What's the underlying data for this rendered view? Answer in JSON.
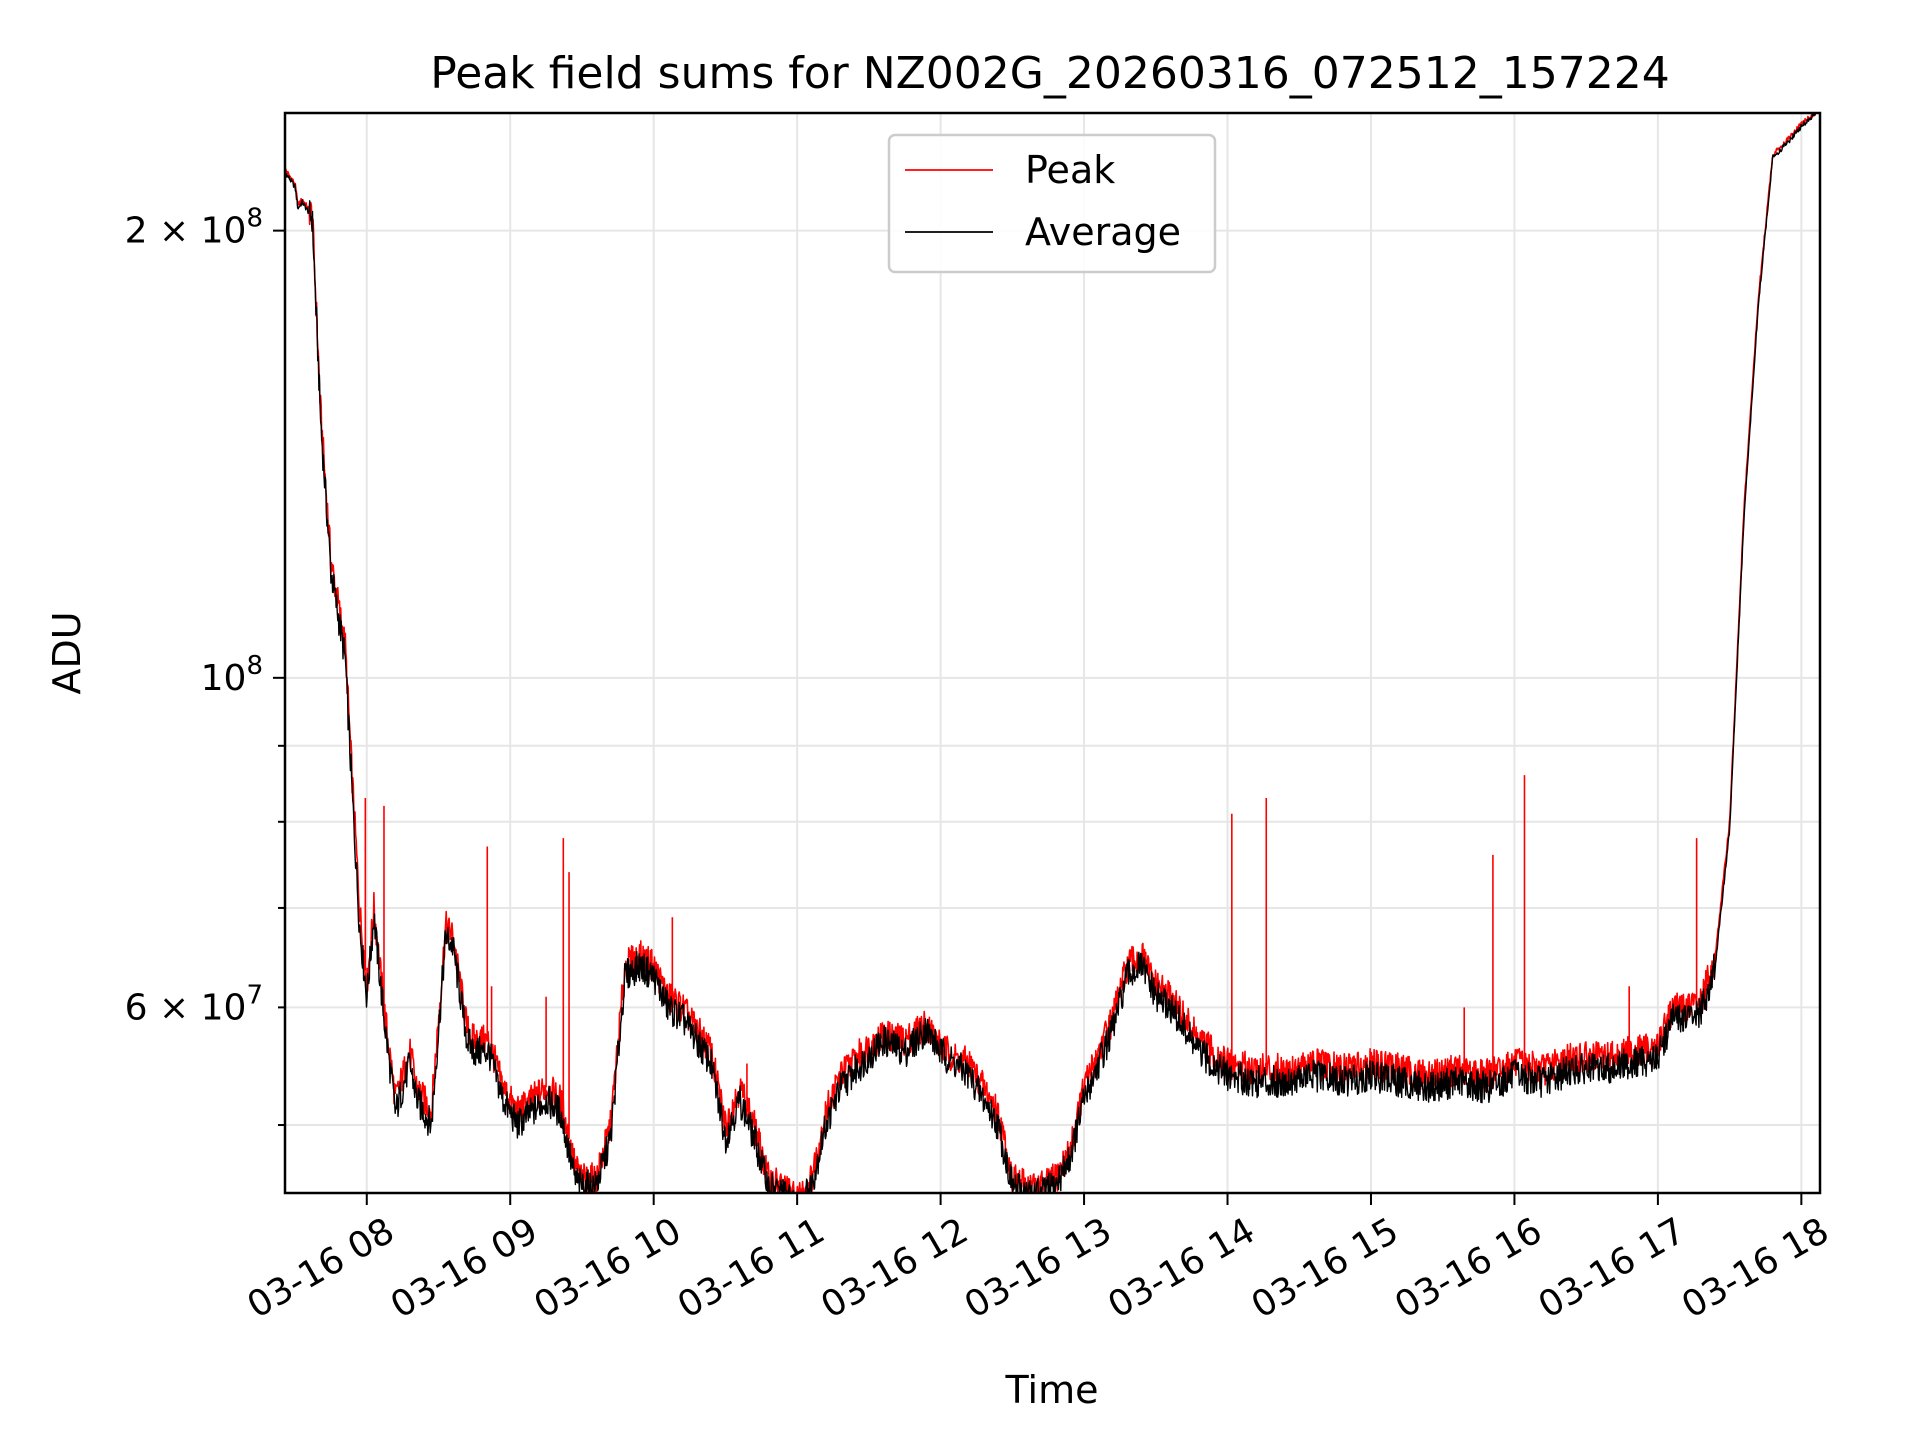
{
  "chart_data": {
    "type": "line",
    "title": "Peak field sums for NZ002G_20260316_072512_157224",
    "xlabel": "Time",
    "ylabel": "ADU",
    "yscale": "log",
    "grid": true,
    "legend_position": "upper-center",
    "xlim": [
      7.43,
      18.13
    ],
    "ylim": [
      45000000,
      240000000
    ],
    "x_ticks": [
      {
        "value": 8,
        "label": "03-16 08"
      },
      {
        "value": 9,
        "label": "03-16 09"
      },
      {
        "value": 10,
        "label": "03-16 10"
      },
      {
        "value": 11,
        "label": "03-16 11"
      },
      {
        "value": 12,
        "label": "03-16 12"
      },
      {
        "value": 13,
        "label": "03-16 13"
      },
      {
        "value": 14,
        "label": "03-16 14"
      },
      {
        "value": 15,
        "label": "03-16 15"
      },
      {
        "value": 16,
        "label": "03-16 16"
      },
      {
        "value": 17,
        "label": "03-16 17"
      },
      {
        "value": 18,
        "label": "03-16 18"
      }
    ],
    "y_major_ticks": [
      {
        "value": 100000000,
        "base": "10",
        "exp": "8",
        "mantissa": ""
      },
      {
        "value": 200000000,
        "base": "10",
        "exp": "8",
        "mantissa": "2"
      }
    ],
    "y_minor_ticks": [
      {
        "value": 50000000,
        "label": ""
      },
      {
        "value": 60000000,
        "base": "10",
        "exp": "7",
        "mantissa": "6"
      },
      {
        "value": 70000000,
        "label": ""
      },
      {
        "value": 80000000,
        "label": ""
      },
      {
        "value": 90000000,
        "label": ""
      }
    ],
    "series": [
      {
        "name": "Peak",
        "color": "#ff0000",
        "x": [
          7.43,
          7.5,
          7.52,
          7.55,
          7.62,
          7.68,
          7.75,
          7.85,
          7.9,
          7.95,
          8.0,
          8.05,
          8.12,
          8.2,
          8.3,
          8.35,
          8.45,
          8.55,
          8.6,
          8.7,
          8.75,
          8.85,
          8.95,
          9.05,
          9.15,
          9.25,
          9.35,
          9.45,
          9.5,
          9.6,
          9.7,
          9.8,
          9.9,
          10.0,
          10.1,
          10.2,
          10.3,
          10.4,
          10.5,
          10.6,
          10.7,
          10.8,
          10.9,
          11.0,
          11.1,
          11.2,
          11.3,
          11.45,
          11.6,
          11.75,
          11.9,
          12.0,
          12.1,
          12.2,
          12.3,
          12.4,
          12.5,
          12.6,
          12.7,
          12.8,
          12.9,
          13.0,
          13.1,
          13.2,
          13.3,
          13.4,
          13.5,
          13.6,
          13.7,
          13.8,
          13.9,
          14.0,
          14.2,
          14.4,
          14.6,
          14.8,
          15.0,
          15.2,
          15.4,
          15.6,
          15.8,
          16.0,
          16.2,
          16.4,
          16.6,
          16.8,
          17.0,
          17.1,
          17.2,
          17.3,
          17.4,
          17.5,
          17.6,
          17.7,
          17.8,
          17.9,
          18.0,
          18.1
        ],
        "y": [
          220000000,
          215000000,
          208000000,
          210000000,
          205000000,
          150000000,
          120000000,
          105000000,
          85000000,
          70000000,
          62000000,
          70000000,
          60000000,
          52000000,
          56000000,
          53000000,
          51000000,
          68000000,
          67000000,
          58000000,
          57000000,
          57000000,
          53000000,
          51000000,
          52000000,
          53000000,
          52000000,
          47000000,
          46000000,
          46000000,
          50000000,
          64000000,
          65000000,
          64000000,
          61000000,
          60000000,
          58000000,
          56000000,
          50000000,
          53000000,
          50000000,
          46000000,
          45500000,
          44500000,
          46000000,
          51000000,
          54000000,
          56000000,
          57500000,
          57000000,
          58500000,
          56500000,
          55500000,
          55000000,
          53000000,
          51000000,
          46000000,
          45500000,
          45500000,
          46000000,
          48000000,
          53000000,
          56000000,
          59000000,
          64000000,
          65000000,
          62000000,
          61000000,
          59000000,
          57000000,
          56000000,
          55000000,
          54500000,
          54500000,
          55000000,
          54500000,
          55000000,
          54500000,
          54000000,
          54500000,
          54000000,
          55000000,
          54500000,
          55500000,
          55500000,
          56000000,
          56500000,
          60000000,
          60000000,
          60500000,
          65000000,
          80000000,
          130000000,
          180000000,
          225000000,
          230000000,
          236000000,
          240000000
        ],
        "spikes": [
          {
            "x": 7.99,
            "y": 83000000
          },
          {
            "x": 8.12,
            "y": 82000000
          },
          {
            "x": 8.84,
            "y": 77000000
          },
          {
            "x": 8.87,
            "y": 62000000
          },
          {
            "x": 9.25,
            "y": 61000000
          },
          {
            "x": 9.37,
            "y": 78000000
          },
          {
            "x": 9.41,
            "y": 74000000
          },
          {
            "x": 10.13,
            "y": 69000000
          },
          {
            "x": 10.65,
            "y": 55000000
          },
          {
            "x": 14.03,
            "y": 81000000
          },
          {
            "x": 14.27,
            "y": 83000000
          },
          {
            "x": 15.65,
            "y": 60000000
          },
          {
            "x": 15.85,
            "y": 76000000
          },
          {
            "x": 16.07,
            "y": 86000000
          },
          {
            "x": 16.8,
            "y": 62000000
          },
          {
            "x": 17.27,
            "y": 78000000
          }
        ]
      },
      {
        "name": "Average",
        "color": "#000000",
        "x": [
          7.43,
          7.5,
          7.52,
          7.55,
          7.62,
          7.68,
          7.75,
          7.85,
          7.9,
          7.95,
          8.0,
          8.05,
          8.12,
          8.2,
          8.3,
          8.35,
          8.45,
          8.55,
          8.6,
          8.7,
          8.75,
          8.85,
          8.95,
          9.05,
          9.15,
          9.25,
          9.35,
          9.45,
          9.5,
          9.6,
          9.7,
          9.8,
          9.9,
          10.0,
          10.1,
          10.2,
          10.3,
          10.4,
          10.5,
          10.6,
          10.7,
          10.8,
          10.9,
          11.0,
          11.1,
          11.2,
          11.3,
          11.45,
          11.6,
          11.75,
          11.9,
          12.0,
          12.1,
          12.2,
          12.3,
          12.4,
          12.5,
          12.6,
          12.7,
          12.8,
          12.9,
          13.0,
          13.1,
          13.2,
          13.3,
          13.4,
          13.5,
          13.6,
          13.7,
          13.8,
          13.9,
          14.0,
          14.2,
          14.4,
          14.6,
          14.8,
          15.0,
          15.2,
          15.4,
          15.6,
          15.8,
          16.0,
          16.2,
          16.4,
          16.6,
          16.8,
          17.0,
          17.1,
          17.2,
          17.3,
          17.4,
          17.5,
          17.6,
          17.7,
          17.8,
          17.9,
          18.0,
          18.1
        ],
        "y": [
          219000000,
          214000000,
          207000000,
          209000000,
          204000000,
          148000000,
          118000000,
          103000000,
          83000000,
          68000000,
          61000000,
          69000000,
          59000000,
          51000000,
          55000000,
          52000000,
          50000000,
          67000000,
          66000000,
          57000000,
          56000000,
          56000000,
          52000000,
          50000000,
          51000000,
          52000000,
          51000000,
          46000000,
          45500000,
          45500000,
          49000000,
          63000000,
          64000000,
          63000000,
          60000000,
          59000000,
          57000000,
          55000000,
          49000000,
          52000000,
          49000000,
          45500000,
          45000000,
          44000000,
          45500000,
          50000000,
          53000000,
          55000000,
          57000000,
          56000000,
          58000000,
          56000000,
          55000000,
          54000000,
          52000000,
          50000000,
          45500000,
          45000000,
          45000000,
          45500000,
          47500000,
          52000000,
          55000000,
          58000000,
          63000000,
          64000000,
          61000000,
          60000000,
          58000000,
          56000000,
          55000000,
          54000000,
          53500000,
          53500000,
          54000000,
          53500000,
          54000000,
          53500000,
          53000000,
          53500000,
          53000000,
          54000000,
          53500000,
          54500000,
          54500000,
          55000000,
          55500000,
          59000000,
          59000000,
          59500000,
          64000000,
          79000000,
          128000000,
          178000000,
          224000000,
          229000000,
          235000000,
          240000000
        ]
      }
    ]
  }
}
